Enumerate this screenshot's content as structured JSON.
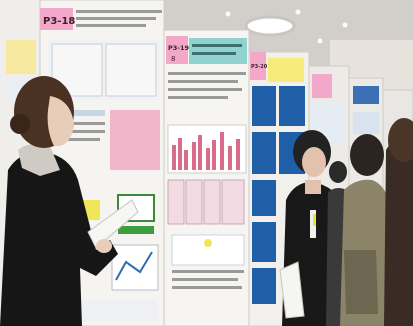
{
  "scene": {
    "signs": {
      "poster_a_number": "P3-18",
      "poster_b_number": "P3-19",
      "poster_c_number": "P3-20",
      "poster_b_extra_digit": "8"
    },
    "colors": {
      "ceiling": "#d6d3cf",
      "wall": "#e2ddd5",
      "board": "#f3f1ee",
      "pink_tag": "#f4a6c9",
      "teal_header": "#8fd2cf",
      "blue_panel": "#1f5fa8",
      "dark_hair": "#3a2a20",
      "coat_black": "#151515",
      "olive_coat": "#8b8468"
    }
  }
}
